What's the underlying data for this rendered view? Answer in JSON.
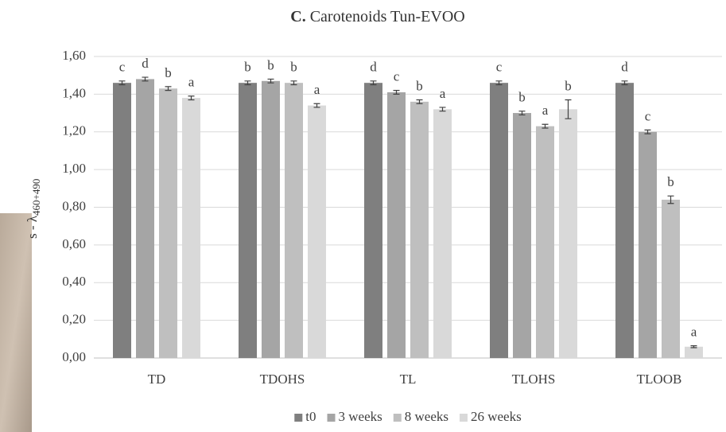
{
  "chart_data": {
    "type": "bar",
    "title_prefix": "C.",
    "title": "Carotenoids Tun-EVOO",
    "ylabel": "s - λ",
    "ylabel_sub": "460+490",
    "categories": [
      "TD",
      "TDOHS",
      "TL",
      "TLOHS",
      "TLOOB"
    ],
    "series": [
      {
        "name": "t0",
        "color": "#7f7f7f",
        "values": [
          1.46,
          1.46,
          1.46,
          1.46,
          1.46
        ],
        "errors": [
          0.01,
          0.01,
          0.01,
          0.01,
          0.01
        ],
        "letters": [
          "c",
          "b",
          "d",
          "c",
          "d"
        ]
      },
      {
        "name": "3 weeks",
        "color": "#a5a5a5",
        "values": [
          1.48,
          1.47,
          1.41,
          1.3,
          1.2
        ],
        "errors": [
          0.01,
          0.01,
          0.01,
          0.01,
          0.01
        ],
        "letters": [
          "d",
          "b",
          "c",
          "b",
          "c"
        ]
      },
      {
        "name": "8 weeks",
        "color": "#bfbfbf",
        "values": [
          1.43,
          1.46,
          1.36,
          1.23,
          0.84
        ],
        "errors": [
          0.01,
          0.01,
          0.01,
          0.01,
          0.02
        ],
        "letters": [
          "b",
          "b",
          "b",
          "a",
          "b"
        ]
      },
      {
        "name": "26 weeks",
        "color": "#d9d9d9",
        "values": [
          1.38,
          1.34,
          1.32,
          1.32,
          0.06
        ],
        "errors": [
          0.01,
          0.01,
          0.01,
          0.05,
          0.005
        ],
        "letters": [
          "a",
          "a",
          "a",
          "b",
          "a"
        ]
      }
    ],
    "ylim": [
      0,
      1.6
    ],
    "yticks": [
      {
        "value": 0,
        "label": "0,00"
      },
      {
        "value": 0.2,
        "label": "0,20"
      },
      {
        "value": 0.4,
        "label": "0,40"
      },
      {
        "value": 0.6,
        "label": "0,60"
      },
      {
        "value": 0.8,
        "label": "0,80"
      },
      {
        "value": 1.0,
        "label": "1,00"
      },
      {
        "value": 1.2,
        "label": "1,20"
      },
      {
        "value": 1.4,
        "label": "1,40"
      },
      {
        "value": 1.6,
        "label": "1,60"
      }
    ],
    "grid": true,
    "legend": "bottom"
  }
}
